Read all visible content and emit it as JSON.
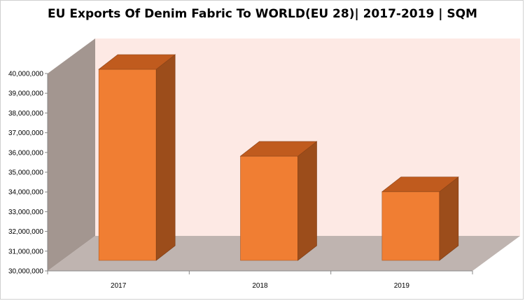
{
  "chart_data": {
    "type": "bar",
    "title": "EU Exports Of Denim Fabric To WORLD(EU 28)| 2017-2019 | SQM",
    "categories": [
      "2017",
      "2018",
      "2019"
    ],
    "values": [
      40000000,
      35600000,
      33800000
    ],
    "ylim": [
      30000000,
      40000000
    ],
    "y_ticks": [
      "30,000,000",
      "31,000,000",
      "32,000,000",
      "33,000,000",
      "34,000,000",
      "35,000,000",
      "36,000,000",
      "37,000,000",
      "38,000,000",
      "39,000,000",
      "40,000,000"
    ],
    "xlabel": "",
    "ylabel": "",
    "grid": false,
    "style": "3d",
    "colors": {
      "bar_front": "#f07e33",
      "bar_top": "#c05b1e",
      "bar_side": "#9c4d1b",
      "back_wall": "#fde9e4",
      "side_wall": "#a39690",
      "floor": "#bfb4b0"
    }
  }
}
